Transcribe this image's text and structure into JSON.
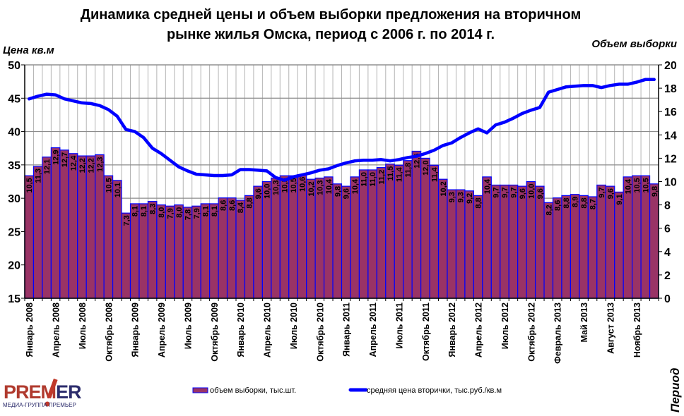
{
  "chart_data": {
    "type": "bar+line",
    "title_line1": "Динамика  средней цены и объем выборки предложения на вторичном",
    "title_line2": "рынке жилья Омска, период с 2006 г. по 2014 г.",
    "ylabel_left": "Цена кв.м",
    "ylabel_right": "Объем выборки",
    "xlabel": "Период",
    "ylim_left": [
      15,
      50
    ],
    "ylim_right": [
      0,
      20
    ],
    "yticks_left": [
      "15",
      "20",
      "25",
      "30",
      "35",
      "40",
      "45",
      "50"
    ],
    "yticks_right": [
      "0",
      "2",
      "4",
      "6",
      "8",
      "10",
      "12",
      "14",
      "16",
      "18",
      "20"
    ],
    "grid": true,
    "legend_position": "bottom",
    "x_tick_labels": [
      "Январь 2008",
      "Апрель 2008",
      "Июль 2008",
      "Октябрь 2008",
      "Январь 2009",
      "Апрель 2009",
      "Июль 2009",
      "Октябрь 2009",
      "Январь 2010",
      "Апрель 2010",
      "Июль 2010",
      "Октябрь 2010",
      "Январь 2011",
      "Апрель 2011",
      "Июль 2011",
      "Октябрь 2011",
      "Январь 2012",
      "Апрель 2012",
      "Июль 2012",
      "Октябрь 2012",
      "Февраль 2013",
      "Май 2013",
      "Август 2013",
      "Ноябрь 2013"
    ],
    "series": [
      {
        "name": "объем выборки, тыс.шт.",
        "type": "bar",
        "axis": "right",
        "color": "#993366",
        "border": "#0000FF",
        "values": [
          10.5,
          11.3,
          12.1,
          12.9,
          12.7,
          12.4,
          12.2,
          12.2,
          12.3,
          10.5,
          10.1,
          7.3,
          8.1,
          8.1,
          8.3,
          8.0,
          7.9,
          8.0,
          7.8,
          7.9,
          8.1,
          8.1,
          8.6,
          8.6,
          8.4,
          8.8,
          9.6,
          10.0,
          10.3,
          10.5,
          10.5,
          10.6,
          10.2,
          10.3,
          10.4,
          9.8,
          9.6,
          10.4,
          11.0,
          11.0,
          11.2,
          11.5,
          11.4,
          11.8,
          12.6,
          12.0,
          11.4,
          10.2,
          9.3,
          9.3,
          9.2,
          8.8,
          10.4,
          9.7,
          9.7,
          9.7,
          9.6,
          10.0,
          9.6,
          8.2,
          8.6,
          8.8,
          8.9,
          8.8,
          8.7,
          9.7,
          9.6,
          9.1,
          10.4,
          10.5,
          10.5,
          9.8
        ],
        "labels": [
          "10,5",
          "11,3",
          "12,1",
          "12,9",
          "12,7",
          "12,4",
          "12,2",
          "12,2",
          "12,3",
          "10,5",
          "10,1",
          "7,3",
          "8,1",
          "8,1",
          "8,3",
          "8,0",
          "7,9",
          "8,0",
          "7,8",
          "7,9",
          "8,1",
          "8,1",
          "8,6",
          "8,6",
          "8,4",
          "8,8",
          "9,6",
          "10,0",
          "10,3",
          "10,5",
          "10,5",
          "10,6",
          "10,2",
          "10,3",
          "10,4",
          "9,8",
          "9,6",
          "10,4",
          "11,0",
          "11,0",
          "11,2",
          "11,5",
          "11,4",
          "11,8",
          "12,6",
          "12,0",
          "11,4",
          "10,2",
          "9,3",
          "9,3",
          "9,2",
          "8,8",
          "10,4",
          "9,7",
          "9,7",
          "9,7",
          "9,6",
          "10,0",
          "9,6",
          "8,2",
          "8,6",
          "8,8",
          "8,9",
          "8,8",
          "8,7",
          "9,7",
          "9,6",
          "9,1",
          "10,4",
          "10,5",
          "10,5",
          "9,8"
        ]
      },
      {
        "name": "средняя цена вторички, тыс.руб./кв.м",
        "type": "line",
        "axis": "left",
        "color": "#0000FF",
        "values": [
          44.9,
          45.3,
          45.6,
          45.5,
          44.9,
          44.6,
          44.3,
          44.2,
          43.9,
          43.3,
          42.3,
          40.3,
          40.0,
          39.1,
          37.5,
          36.7,
          35.7,
          34.7,
          34.1,
          33.6,
          33.5,
          33.4,
          33.4,
          33.5,
          34.3,
          34.3,
          34.2,
          34.1,
          33.1,
          32.7,
          33.2,
          33.5,
          33.8,
          34.2,
          34.4,
          34.9,
          35.3,
          35.6,
          35.7,
          35.7,
          35.8,
          35.6,
          35.8,
          36.1,
          36.3,
          36.7,
          37.2,
          37.9,
          38.3,
          39.1,
          39.8,
          40.4,
          39.8,
          41.0,
          41.4,
          42.0,
          42.7,
          43.2,
          43.6,
          45.9,
          46.3,
          46.7,
          46.8,
          46.9,
          46.9,
          46.6,
          46.9,
          47.1,
          47.1,
          47.4,
          47.8,
          47.8
        ]
      }
    ]
  },
  "logo": {
    "text": "PREMIER",
    "subtitle": "МЕДИА-ГРУППА ПРЕМЬЕР"
  }
}
